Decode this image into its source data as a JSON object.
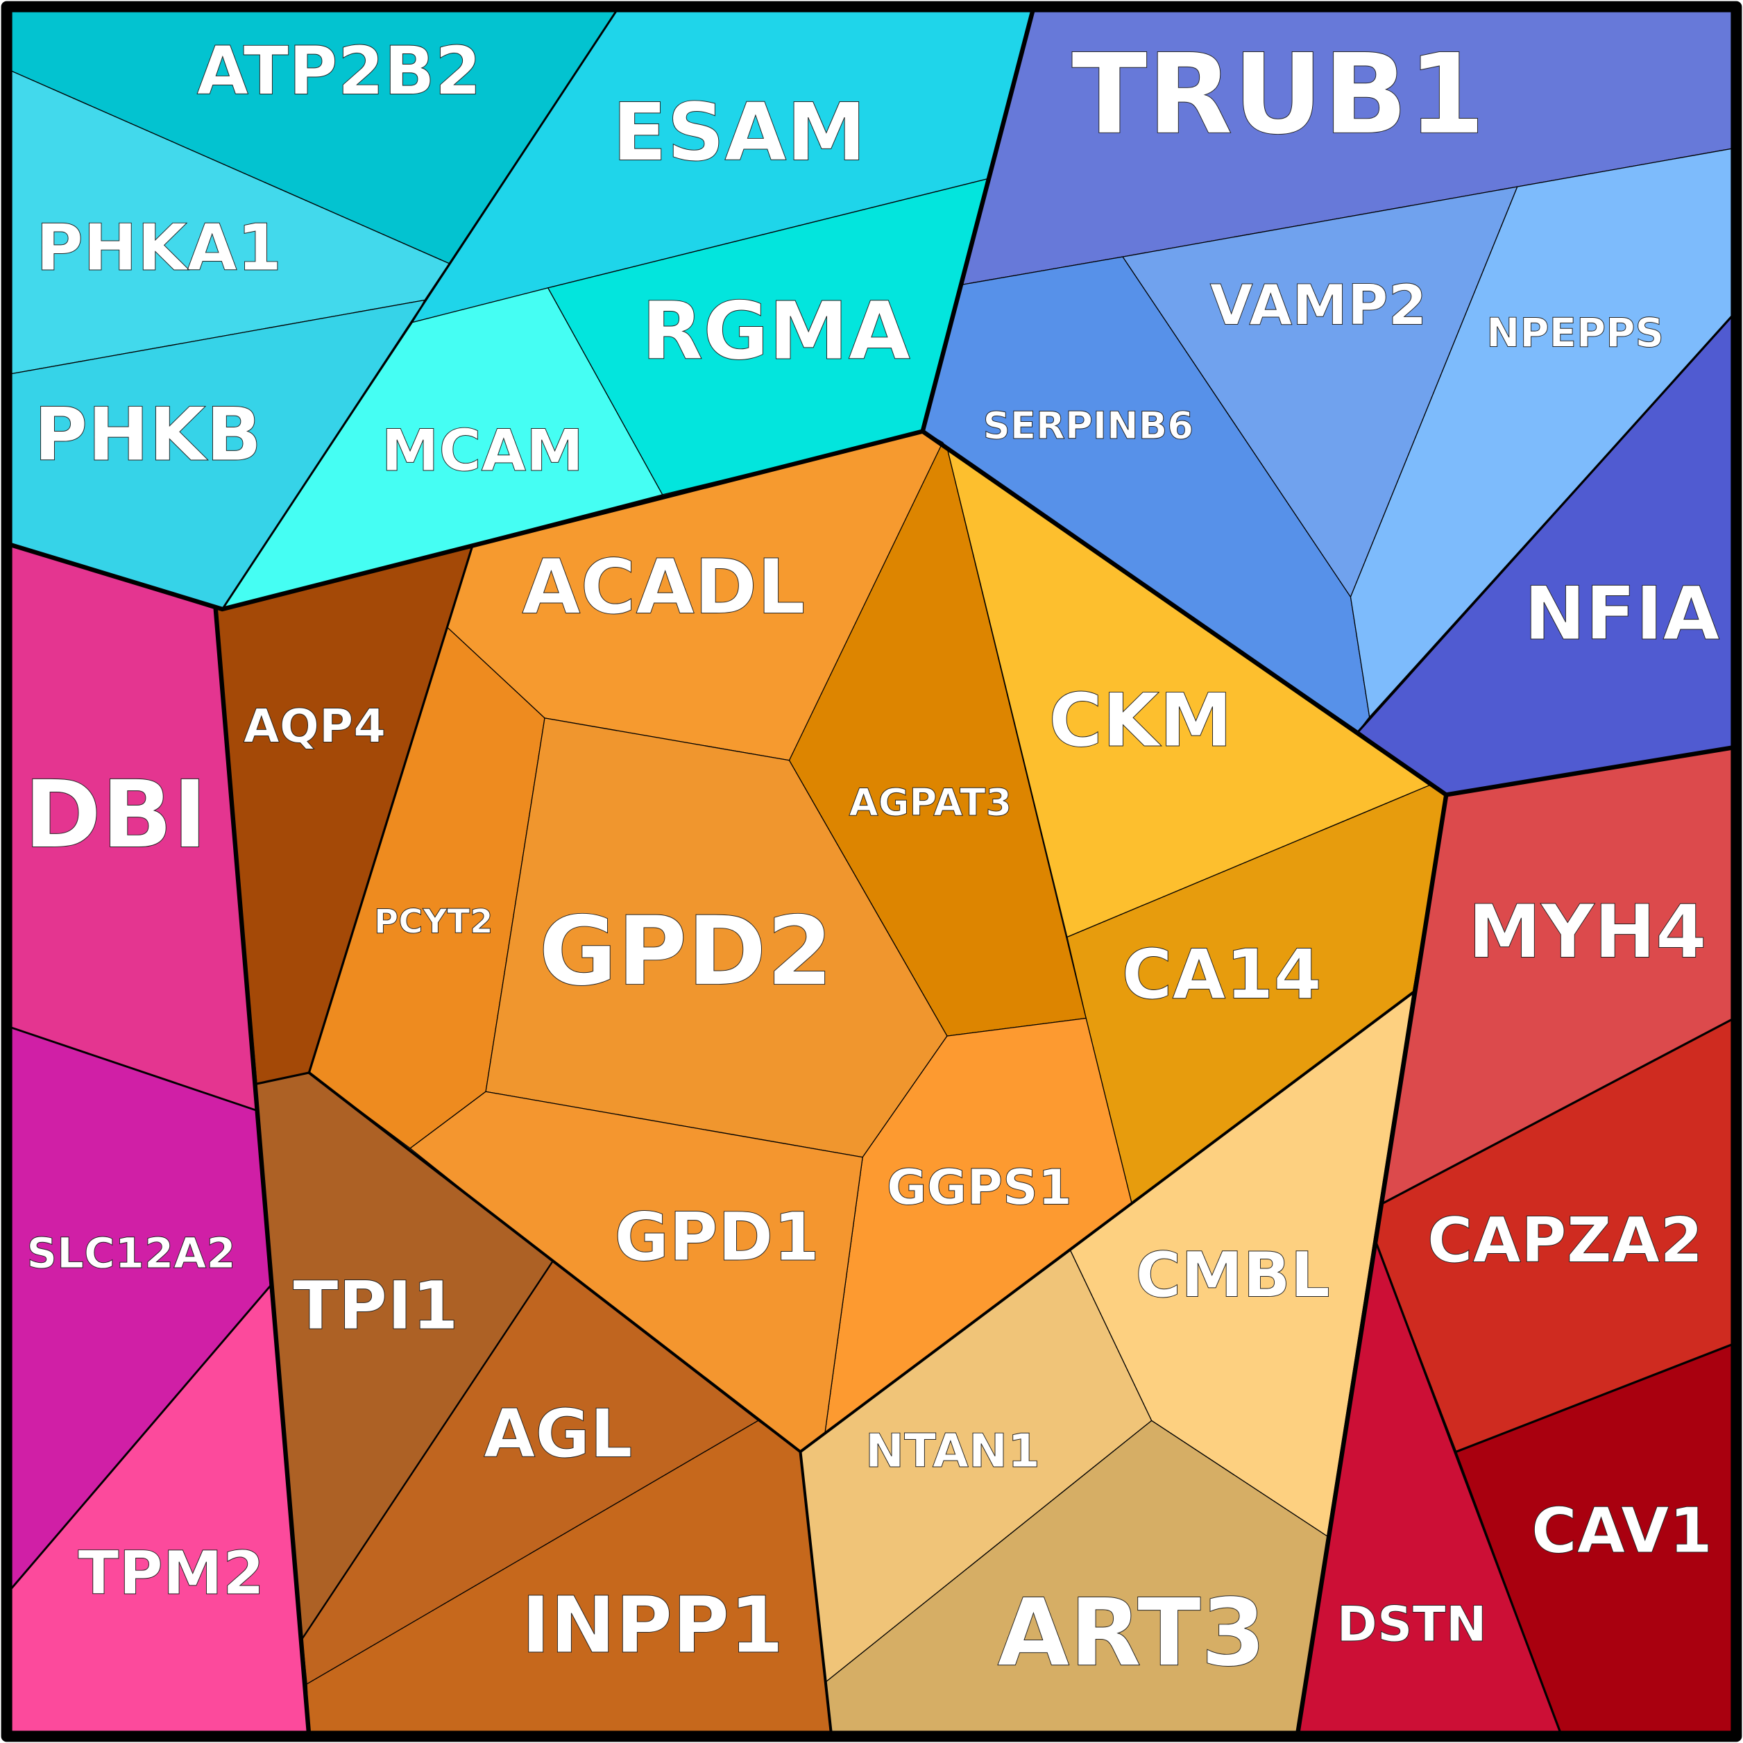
{
  "diagram": {
    "type": "voronoi-treemap",
    "cells": [
      {
        "id": "ATP2B2",
        "label": "ATP2B2",
        "color": "#03C3D0"
      },
      {
        "id": "ESAM",
        "label": "ESAM",
        "color": "#1FD5EA"
      },
      {
        "id": "PHKA1",
        "label": "PHKA1",
        "color": "#42D9EC"
      },
      {
        "id": "PHKB",
        "label": "PHKB",
        "color": "#36D3E8"
      },
      {
        "id": "MCAM",
        "label": "MCAM",
        "color": "#45FEF3"
      },
      {
        "id": "RGMA",
        "label": "RGMA",
        "color": "#03E5DD"
      },
      {
        "id": "TRUB1",
        "label": "TRUB1",
        "color": "#6779D9"
      },
      {
        "id": "SERPINB6",
        "label": "SERPINB6",
        "color": "#5791E9"
      },
      {
        "id": "VAMP2",
        "label": "VAMP2",
        "color": "#70A2EE"
      },
      {
        "id": "NPEPPS",
        "label": "NPEPPS",
        "color": "#7DBBFC"
      },
      {
        "id": "NFIA",
        "label": "NFIA",
        "color": "#505BD1"
      },
      {
        "id": "CKM",
        "label": "CKM",
        "color": "#FDBF2E"
      },
      {
        "id": "CA14",
        "label": "CA14",
        "color": "#E79C0D"
      },
      {
        "id": "AGPAT3",
        "label": "AGPAT3",
        "color": "#DD8500"
      },
      {
        "id": "ACADL",
        "label": "ACADL",
        "color": "#F69A2F"
      },
      {
        "id": "AQP4",
        "label": "AQP4",
        "color": "#A44907"
      },
      {
        "id": "DBI",
        "label": "DBI",
        "color": "#E43590"
      },
      {
        "id": "PCYT2",
        "label": "PCYT2",
        "color": "#EE8B1F"
      },
      {
        "id": "GPD2",
        "label": "GPD2",
        "color": "#F0962E"
      },
      {
        "id": "GGPS1",
        "label": "GGPS1",
        "color": "#FD9A30"
      },
      {
        "id": "GPD1",
        "label": "GPD1",
        "color": "#F4962F"
      },
      {
        "id": "TPI1",
        "label": "TPI1",
        "color": "#AD6125"
      },
      {
        "id": "SLC12A2",
        "label": "SLC12A2",
        "color": "#D01FA6"
      },
      {
        "id": "TPM2",
        "label": "TPM2",
        "color": "#FC4A9C"
      },
      {
        "id": "AGL",
        "label": "AGL",
        "color": "#C0651F"
      },
      {
        "id": "INPP1",
        "label": "INPP1",
        "color": "#C6681C"
      },
      {
        "id": "NTAN1",
        "label": "NTAN1",
        "color": "#F0C478"
      },
      {
        "id": "CMBL",
        "label": "CMBL",
        "color": "#FDD080"
      },
      {
        "id": "ART3",
        "label": "ART3",
        "color": "#D6AE65"
      },
      {
        "id": "MYH4",
        "label": "MYH4",
        "color": "#DC4A4C"
      },
      {
        "id": "CAPZA2",
        "label": "CAPZA2",
        "color": "#CF2B20"
      },
      {
        "id": "DSTN",
        "label": "DSTN",
        "color": "#CC0F36"
      },
      {
        "id": "CAV1",
        "label": "CAV1",
        "color": "#A9000F"
      }
    ]
  }
}
